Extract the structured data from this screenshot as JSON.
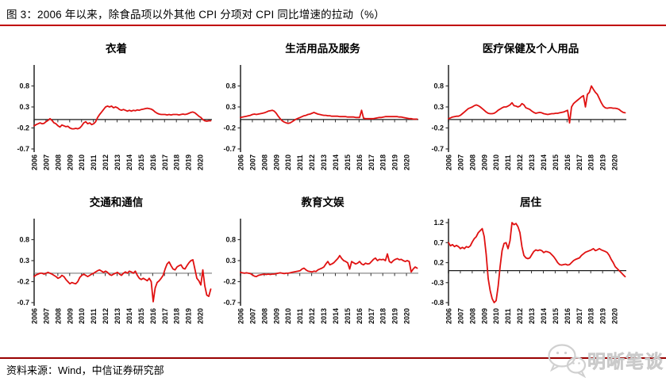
{
  "page": {
    "title": "图 3：2006 年以来，除食品项以外其他 CPI 分项对 CPI 同比增速的拉动（%）",
    "source_note": "资料来源：Wind，中信证券研究部",
    "watermark": {
      "text": "明晰笔谈",
      "icon": "wechat-logo-icon"
    },
    "colors": {
      "series": "#e01111",
      "title_underline": "#c00000",
      "footer_rule": "#990000",
      "axis_spine": "#5a5a5a",
      "tick": "#333333",
      "watermark_gray": "#d2d2d2"
    }
  },
  "chart_data": [
    {
      "type": "line",
      "title": "衣着",
      "x_tick_years": [
        2006,
        2007,
        2008,
        2009,
        2010,
        2011,
        2012,
        2013,
        2014,
        2015,
        2016,
        2017,
        2018,
        2019,
        2020
      ],
      "x_end": 2020.9,
      "ylim": [
        -0.7,
        1.3
      ],
      "y_ticks": [
        0.8,
        0.3,
        -0.2,
        -0.7
      ],
      "zero_line_color": "#1a1a1a",
      "values": [
        -0.15,
        -0.12,
        -0.1,
        -0.08,
        -0.1,
        -0.09,
        -0.05,
        -0.02,
        0.02,
        -0.02,
        -0.08,
        -0.1,
        -0.15,
        -0.18,
        -0.13,
        -0.15,
        -0.17,
        -0.16,
        -0.2,
        -0.22,
        -0.22,
        -0.21,
        -0.22,
        -0.2,
        -0.15,
        -0.08,
        -0.05,
        -0.1,
        -0.08,
        -0.12,
        -0.1,
        -0.05,
        0.05,
        0.12,
        0.18,
        0.24,
        0.3,
        0.32,
        0.3,
        0.32,
        0.28,
        0.3,
        0.28,
        0.24,
        0.22,
        0.24,
        0.22,
        0.2,
        0.22,
        0.2,
        0.22,
        0.21,
        0.23,
        0.22,
        0.24,
        0.25,
        0.26,
        0.27,
        0.26,
        0.25,
        0.22,
        0.18,
        0.15,
        0.13,
        0.12,
        0.12,
        0.12,
        0.11,
        0.12,
        0.11,
        0.12,
        0.12,
        0.12,
        0.11,
        0.12,
        0.13,
        0.12,
        0.13,
        0.15,
        0.17,
        0.18,
        0.16,
        0.12,
        0.08,
        0.05,
        0.0,
        -0.03,
        -0.04,
        -0.03,
        -0.03
      ]
    },
    {
      "type": "line",
      "title": "生活用品及服务",
      "x_tick_years": [
        2006,
        2007,
        2008,
        2009,
        2010,
        2011,
        2012,
        2013,
        2014,
        2015,
        2016,
        2017,
        2018,
        2019,
        2020
      ],
      "x_end": 2020.9,
      "ylim": [
        -0.7,
        1.3
      ],
      "y_ticks": [
        0.8,
        0.3,
        -0.2,
        -0.7
      ],
      "zero_line_color": "#1a1a1a",
      "values": [
        0.05,
        0.06,
        0.07,
        0.08,
        0.09,
        0.1,
        0.12,
        0.13,
        0.12,
        0.13,
        0.14,
        0.15,
        0.16,
        0.18,
        0.2,
        0.21,
        0.22,
        0.2,
        0.15,
        0.08,
        0.02,
        -0.03,
        -0.06,
        -0.08,
        -0.09,
        -0.08,
        -0.05,
        -0.02,
        0.01,
        0.03,
        0.05,
        0.07,
        0.09,
        0.1,
        0.12,
        0.13,
        0.15,
        0.17,
        0.15,
        0.13,
        0.12,
        0.11,
        0.1,
        0.1,
        0.09,
        0.09,
        0.08,
        0.08,
        0.08,
        0.08,
        0.07,
        0.07,
        0.07,
        0.07,
        0.06,
        0.06,
        0.06,
        0.06,
        0.05,
        0.05,
        0.05,
        0.22,
        0.03,
        0.02,
        0.02,
        0.02,
        0.02,
        0.02,
        0.03,
        0.04,
        0.05,
        0.05,
        0.06,
        0.07,
        0.07,
        0.07,
        0.07,
        0.07,
        0.07,
        0.07,
        0.06,
        0.06,
        0.05,
        0.04,
        0.03,
        0.02,
        0.02,
        0.01,
        0.01,
        0.01
      ]
    },
    {
      "type": "line",
      "title": "医疗保健及个人用品",
      "x_tick_years": [
        2006,
        2007,
        2008,
        2009,
        2010,
        2011,
        2012,
        2013,
        2014,
        2015,
        2016,
        2017,
        2018,
        2019,
        2020
      ],
      "x_end": 2020.9,
      "ylim": [
        -0.7,
        1.3
      ],
      "y_ticks": [
        0.8,
        0.3,
        -0.2,
        -0.7
      ],
      "zero_line_color": "#1a1a1a",
      "values": [
        0.02,
        0.04,
        0.06,
        0.07,
        0.08,
        0.08,
        0.1,
        0.14,
        0.18,
        0.22,
        0.26,
        0.28,
        0.3,
        0.33,
        0.35,
        0.33,
        0.3,
        0.26,
        0.22,
        0.18,
        0.15,
        0.14,
        0.14,
        0.15,
        0.18,
        0.22,
        0.25,
        0.28,
        0.3,
        0.3,
        0.32,
        0.35,
        0.4,
        0.33,
        0.32,
        0.3,
        0.32,
        0.38,
        0.35,
        0.28,
        0.26,
        0.24,
        0.2,
        0.17,
        0.15,
        0.16,
        0.17,
        0.16,
        0.14,
        0.13,
        0.12,
        0.13,
        0.14,
        0.14,
        0.15,
        0.15,
        0.16,
        0.17,
        0.18,
        0.2,
        0.22,
        -0.08,
        0.3,
        0.38,
        0.42,
        0.46,
        0.5,
        0.54,
        0.57,
        0.3,
        0.6,
        0.65,
        0.8,
        0.72,
        0.65,
        0.6,
        0.5,
        0.4,
        0.32,
        0.28,
        0.27,
        0.28,
        0.28,
        0.27,
        0.27,
        0.26,
        0.24,
        0.2,
        0.17,
        0.16
      ]
    },
    {
      "type": "line",
      "title": "交通和通信",
      "x_tick_years": [
        2006,
        2007,
        2008,
        2009,
        2010,
        2011,
        2012,
        2013,
        2014,
        2015,
        2016,
        2017,
        2018,
        2019,
        2020
      ],
      "x_end": 2020.9,
      "ylim": [
        -0.7,
        1.3
      ],
      "y_ticks": [
        0.8,
        0.3,
        -0.2,
        -0.7
      ],
      "zero_line_color": "#8a8a8a",
      "values": [
        -0.08,
        -0.04,
        -0.02,
        0.0,
        0.0,
        -0.02,
        0.0,
        0.02,
        0.0,
        -0.02,
        -0.05,
        -0.08,
        -0.12,
        -0.1,
        -0.05,
        -0.08,
        -0.15,
        -0.2,
        -0.25,
        -0.22,
        -0.24,
        -0.25,
        -0.2,
        -0.1,
        -0.05,
        -0.02,
        -0.05,
        -0.08,
        -0.05,
        -0.02,
        0.0,
        0.03,
        0.06,
        0.08,
        0.05,
        0.02,
        0.05,
        0.02,
        -0.03,
        -0.05,
        -0.02,
        0.0,
        0.02,
        -0.02,
        -0.05,
        0.0,
        0.03,
        0.0,
        0.05,
        0.03,
        0.0,
        0.05,
        -0.05,
        -0.12,
        -0.15,
        -0.12,
        -0.15,
        -0.18,
        -0.12,
        -0.2,
        -0.68,
        -0.35,
        -0.22,
        -0.18,
        -0.12,
        -0.05,
        0.1,
        0.22,
        0.27,
        0.18,
        0.1,
        0.08,
        0.15,
        0.18,
        0.2,
        0.12,
        0.1,
        0.18,
        0.25,
        0.3,
        0.32,
        0.1,
        -0.12,
        -0.18,
        -0.28,
        0.08,
        -0.3,
        -0.52,
        -0.55,
        -0.38
      ]
    },
    {
      "type": "line",
      "title": "教育文娱",
      "x_tick_years": [
        2006,
        2007,
        2008,
        2009,
        2010,
        2011,
        2012,
        2013,
        2014,
        2015,
        2016,
        2017,
        2018,
        2019,
        2020
      ],
      "x_end": 2020.9,
      "ylim": [
        -0.7,
        1.3
      ],
      "y_ticks": [
        0.8,
        0.3,
        -0.2,
        -0.7
      ],
      "zero_line_color": "#8a8a8a",
      "values": [
        0.02,
        0.01,
        0.0,
        0.01,
        0.0,
        -0.01,
        -0.04,
        -0.07,
        -0.08,
        -0.05,
        -0.04,
        -0.03,
        -0.02,
        -0.03,
        -0.02,
        -0.03,
        -0.02,
        -0.02,
        -0.01,
        0.0,
        0.01,
        0.0,
        -0.01,
        0.0,
        0.0,
        0.01,
        0.02,
        0.03,
        0.04,
        0.05,
        0.06,
        0.1,
        0.12,
        0.08,
        0.05,
        0.04,
        0.03,
        0.05,
        0.04,
        0.08,
        0.1,
        0.12,
        0.15,
        0.22,
        0.28,
        0.2,
        0.22,
        0.25,
        0.3,
        0.35,
        0.42,
        0.35,
        0.3,
        0.28,
        0.25,
        0.1,
        0.28,
        0.25,
        0.22,
        0.24,
        0.28,
        0.22,
        0.2,
        0.24,
        0.22,
        0.23,
        0.28,
        0.33,
        0.36,
        0.3,
        0.33,
        0.32,
        0.33,
        0.3,
        0.46,
        0.28,
        0.25,
        0.3,
        0.33,
        0.35,
        0.32,
        0.33,
        0.3,
        0.28,
        0.3,
        0.28,
        0.03,
        0.1,
        0.15,
        0.12
      ]
    },
    {
      "type": "line",
      "title": "居住",
      "x_tick_years": [
        2006,
        2007,
        2008,
        2009,
        2010,
        2011,
        2012,
        2013,
        2014,
        2015,
        2016,
        2017,
        2018,
        2019,
        2020
      ],
      "x_end": 2020.9,
      "ylim": [
        -0.8,
        1.3
      ],
      "y_ticks": [
        1.2,
        0.7,
        0.2,
        -0.3,
        -0.8
      ],
      "zero_line_color": "#1a1a1a",
      "values": [
        0.7,
        0.62,
        0.65,
        0.6,
        0.63,
        0.6,
        0.55,
        0.58,
        0.55,
        0.6,
        0.58,
        0.62,
        0.72,
        0.8,
        0.85,
        0.95,
        1.0,
        1.05,
        0.85,
        0.4,
        -0.2,
        -0.5,
        -0.7,
        -0.8,
        -0.75,
        -0.4,
        0.1,
        0.5,
        0.68,
        0.7,
        0.55,
        0.75,
        1.2,
        1.15,
        1.18,
        1.1,
        0.95,
        0.6,
        0.38,
        0.32,
        0.3,
        0.32,
        0.4,
        0.48,
        0.52,
        0.5,
        0.52,
        0.5,
        0.45,
        0.48,
        0.47,
        0.45,
        0.4,
        0.35,
        0.28,
        0.2,
        0.15,
        0.14,
        0.15,
        0.16,
        0.14,
        0.15,
        0.2,
        0.25,
        0.28,
        0.3,
        0.32,
        0.38,
        0.42,
        0.46,
        0.48,
        0.5,
        0.52,
        0.55,
        0.5,
        0.52,
        0.55,
        0.52,
        0.5,
        0.48,
        0.45,
        0.38,
        0.28,
        0.2,
        0.1,
        0.05,
        0.0,
        -0.05,
        -0.1,
        -0.15
      ]
    }
  ]
}
